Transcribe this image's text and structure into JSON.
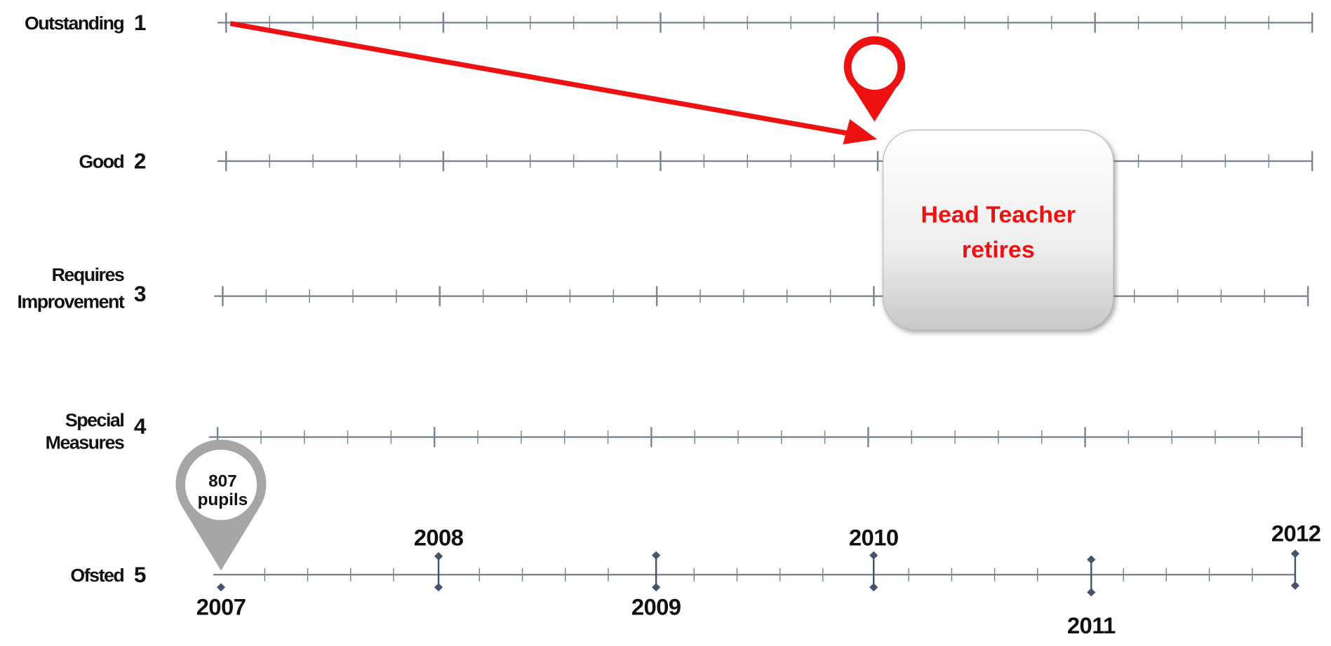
{
  "rows": [
    {
      "label": [
        "Outstanding"
      ],
      "number": "1"
    },
    {
      "label": [
        "Good"
      ],
      "number": "2"
    },
    {
      "label": [
        "Requires",
        "Improvement"
      ],
      "number": "3"
    },
    {
      "label": [
        "Special",
        "Measures"
      ],
      "number": "4"
    },
    {
      "label": [
        "Ofsted"
      ],
      "number": "5"
    }
  ],
  "years": [
    "2007",
    "2008",
    "2009",
    "2010",
    "2011",
    "2012"
  ],
  "pupils_callout": [
    "807",
    "pupils"
  ],
  "event": [
    "Head Teacher",
    "retires"
  ]
}
